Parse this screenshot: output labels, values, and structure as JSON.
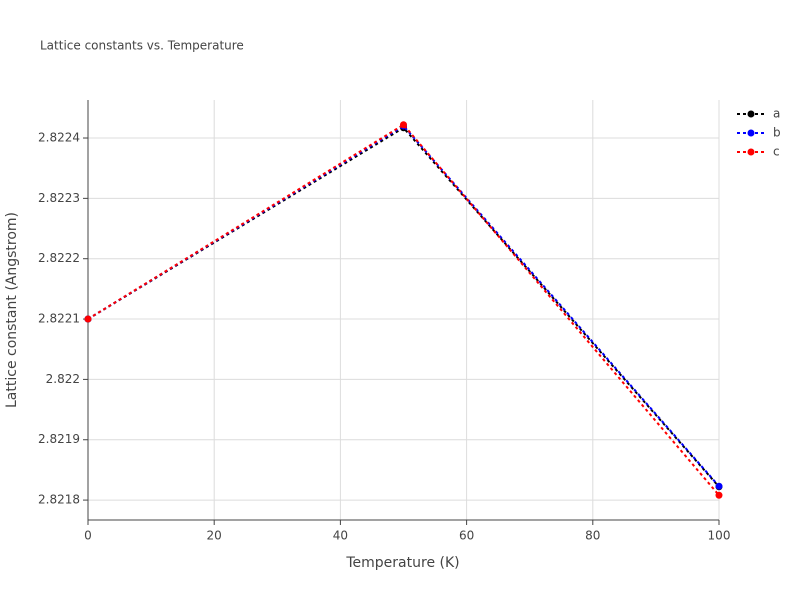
{
  "chart_data": {
    "type": "line",
    "title": "Lattice constants vs. Temperature",
    "x_label": "Temperature (K)",
    "y_label": "Lattice constant (Angstrom)",
    "x": [
      0,
      50,
      100
    ],
    "series": [
      {
        "name": "a",
        "color": "#000000",
        "values": [
          2.8221,
          2.822417,
          2.821822
        ]
      },
      {
        "name": "b",
        "color": "#0000ff",
        "values": [
          2.8221,
          2.82242,
          2.821823
        ]
      },
      {
        "name": "c",
        "color": "#ff0000",
        "values": [
          2.8221,
          2.822422,
          2.821808
        ]
      }
    ],
    "xlim": [
      0,
      100
    ],
    "xticks": [
      0,
      20,
      40,
      60,
      80,
      100
    ],
    "ylim": [
      2.821767,
      2.822463
    ],
    "yticks": [
      2.8218,
      2.8219,
      2.822,
      2.8221,
      2.8222,
      2.8223,
      2.8224
    ],
    "grid": true,
    "legend": "top-right",
    "line_style": "dotted"
  }
}
